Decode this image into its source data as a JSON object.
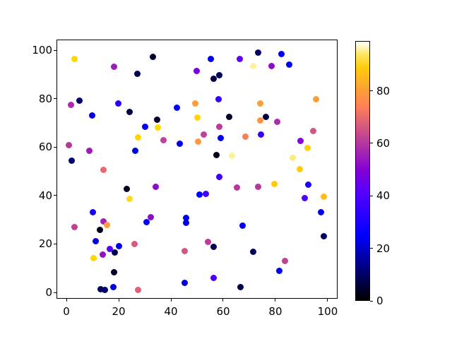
{
  "chart_data": {
    "type": "scatter",
    "title": "",
    "xlabel": "",
    "ylabel": "",
    "grid": false,
    "marker_shape": "circle",
    "marker_colormap": "gnuplot2",
    "x_ticks": [
      0,
      20,
      40,
      60,
      80,
      100
    ],
    "y_ticks": [
      0,
      20,
      40,
      60,
      80,
      100
    ],
    "xlim": [
      -3.8,
      103.8
    ],
    "ylim": [
      -2.6,
      104.4
    ],
    "colorbar": {
      "position": "right",
      "vmin": 0,
      "vmax": 99,
      "ticks": [
        0,
        20,
        40,
        60,
        80
      ]
    },
    "points_format": [
      "x",
      "y",
      "color_value"
    ],
    "points": [
      [
        3.0,
        96.4,
        91
      ],
      [
        18.1,
        93.3,
        55
      ],
      [
        27.1,
        90.4,
        8
      ],
      [
        33.2,
        97.2,
        5
      ],
      [
        49.8,
        91.3,
        48
      ],
      [
        55.3,
        96.5,
        24
      ],
      [
        56.4,
        88.3,
        7
      ],
      [
        58.4,
        89.6,
        9
      ],
      [
        66.3,
        96.4,
        43
      ],
      [
        71.5,
        93.5,
        96
      ],
      [
        73.3,
        99.1,
        10
      ],
      [
        78.5,
        93.4,
        52
      ],
      [
        82.4,
        98.3,
        24
      ],
      [
        85.4,
        94.0,
        24
      ],
      [
        1.8,
        77.3,
        58
      ],
      [
        5.1,
        79.3,
        10
      ],
      [
        9.9,
        73.1,
        22
      ],
      [
        19.8,
        78.1,
        33
      ],
      [
        24.3,
        74.4,
        6
      ],
      [
        30.2,
        68.5,
        24
      ],
      [
        34.7,
        71.4,
        5
      ],
      [
        35.0,
        68.2,
        91
      ],
      [
        42.2,
        76.2,
        24
      ],
      [
        49.4,
        77.9,
        80
      ],
      [
        50.1,
        72.3,
        91
      ],
      [
        58.2,
        79.9,
        35
      ],
      [
        58.4,
        68.3,
        61
      ],
      [
        62.4,
        72.6,
        4
      ],
      [
        74.3,
        78.1,
        80
      ],
      [
        76.4,
        72.6,
        6
      ],
      [
        74.3,
        71.1,
        78
      ],
      [
        80.7,
        70.4,
        58
      ],
      [
        95.5,
        79.8,
        80
      ],
      [
        94.4,
        66.5,
        66
      ],
      [
        68.6,
        64.3,
        74
      ],
      [
        74.4,
        65.1,
        36
      ],
      [
        0.9,
        60.9,
        60
      ],
      [
        8.8,
        58.5,
        55
      ],
      [
        2.1,
        54.4,
        11
      ],
      [
        27.3,
        64.0,
        91
      ],
      [
        26.4,
        58.5,
        22
      ],
      [
        37.2,
        62.8,
        62
      ],
      [
        43.3,
        61.4,
        23
      ],
      [
        50.3,
        62.4,
        79
      ],
      [
        52.5,
        65.3,
        62
      ],
      [
        59.1,
        63.8,
        23
      ],
      [
        57.5,
        56.6,
        3
      ],
      [
        63.5,
        56.4,
        96
      ],
      [
        86.7,
        55.7,
        95
      ],
      [
        89.6,
        62.6,
        50
      ],
      [
        92.3,
        59.6,
        90
      ],
      [
        89.4,
        51.0,
        89
      ],
      [
        14.3,
        50.6,
        70
      ],
      [
        23.2,
        42.7,
        3
      ],
      [
        24.1,
        38.6,
        92
      ],
      [
        34.1,
        43.6,
        52
      ],
      [
        58.4,
        47.7,
        36
      ],
      [
        65.4,
        43.4,
        60
      ],
      [
        73.4,
        43.6,
        60
      ],
      [
        79.5,
        44.7,
        89
      ],
      [
        92.5,
        44.4,
        30
      ],
      [
        51.0,
        40.4,
        25
      ],
      [
        53.5,
        40.6,
        38
      ],
      [
        91.3,
        38.9,
        40
      ],
      [
        98.6,
        39.6,
        86
      ],
      [
        97.4,
        33.0,
        23
      ],
      [
        10.2,
        33.1,
        29
      ],
      [
        3.0,
        26.9,
        62
      ],
      [
        14.2,
        29.2,
        56
      ],
      [
        15.4,
        27.9,
        80
      ],
      [
        12.9,
        25.7,
        2
      ],
      [
        11.1,
        21.1,
        22
      ],
      [
        32.2,
        31.1,
        52
      ],
      [
        30.7,
        28.9,
        24
      ],
      [
        45.9,
        30.8,
        23
      ],
      [
        45.9,
        28.7,
        21
      ],
      [
        26.1,
        19.9,
        67
      ],
      [
        45.3,
        17.2,
        66
      ],
      [
        67.4,
        27.7,
        23
      ],
      [
        54.3,
        20.8,
        61
      ],
      [
        56.4,
        18.9,
        8
      ],
      [
        71.4,
        16.9,
        9
      ],
      [
        98.5,
        23.2,
        9
      ],
      [
        13.9,
        15.7,
        53
      ],
      [
        16.6,
        17.9,
        41
      ],
      [
        18.4,
        16.5,
        8
      ],
      [
        20.2,
        19.1,
        23
      ],
      [
        10.5,
        14.3,
        91
      ],
      [
        18.3,
        8.3,
        4
      ],
      [
        83.6,
        13.1,
        62
      ],
      [
        81.5,
        8.9,
        23
      ],
      [
        56.4,
        6.0,
        39
      ],
      [
        66.5,
        2.1,
        7
      ],
      [
        13.2,
        1.2,
        9
      ],
      [
        14.7,
        0.9,
        10
      ],
      [
        18.0,
        2.1,
        21
      ],
      [
        27.3,
        1.0,
        68
      ],
      [
        45.3,
        4.1,
        21
      ]
    ]
  }
}
